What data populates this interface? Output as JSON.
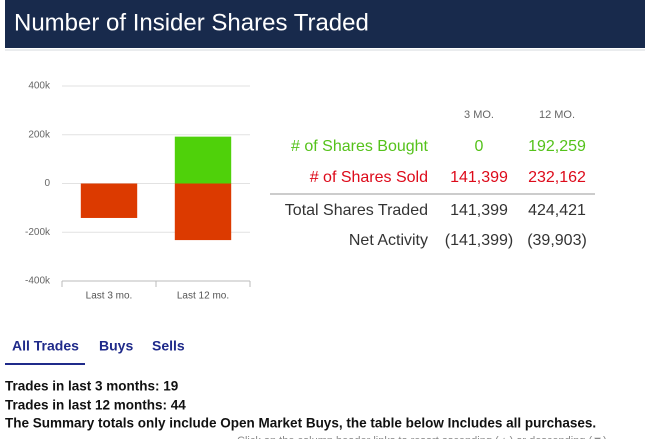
{
  "header": {
    "title": "Number of Insider Shares Traded"
  },
  "chart_data": {
    "type": "bar",
    "categories": [
      "Last 3 mo.",
      "Last 12 mo."
    ],
    "series": [
      {
        "color": "#4fd10a",
        "values": [
          0,
          192259
        ]
      },
      {
        "color": "#dc3a00",
        "values": [
          -141399,
          -232162
        ]
      }
    ],
    "ylim": [
      -400000,
      400000
    ],
    "yticks": [
      {
        "value": -400000,
        "label": "-400k"
      },
      {
        "value": -200000,
        "label": "-200k"
      },
      0,
      {
        "value": 200000,
        "label": "200k"
      },
      {
        "value": 400000,
        "label": "400k"
      }
    ],
    "grid": true
  },
  "table": {
    "columns": [
      "3 MO.",
      "12 MO."
    ],
    "rows": [
      [
        "# of Shares Bought",
        "0",
        "192,259"
      ],
      [
        "# of Shares Sold",
        "141,399",
        "232,162"
      ],
      [
        "Total Shares Traded",
        "141,399",
        "424,421"
      ],
      [
        "Net Activity",
        "(141,399)",
        "(39,903)"
      ]
    ]
  },
  "tabs": [
    "All Trades",
    "Buys",
    "Sells"
  ],
  "notes": [
    "Trades in last 3 months: 19",
    "Trades in last 12 months: 44",
    "The Summary totals only include Open Market Buys, the table below Includes all purchases.",
    "Click on the column header links to resort ascending (▲) or descending (▼)."
  ]
}
